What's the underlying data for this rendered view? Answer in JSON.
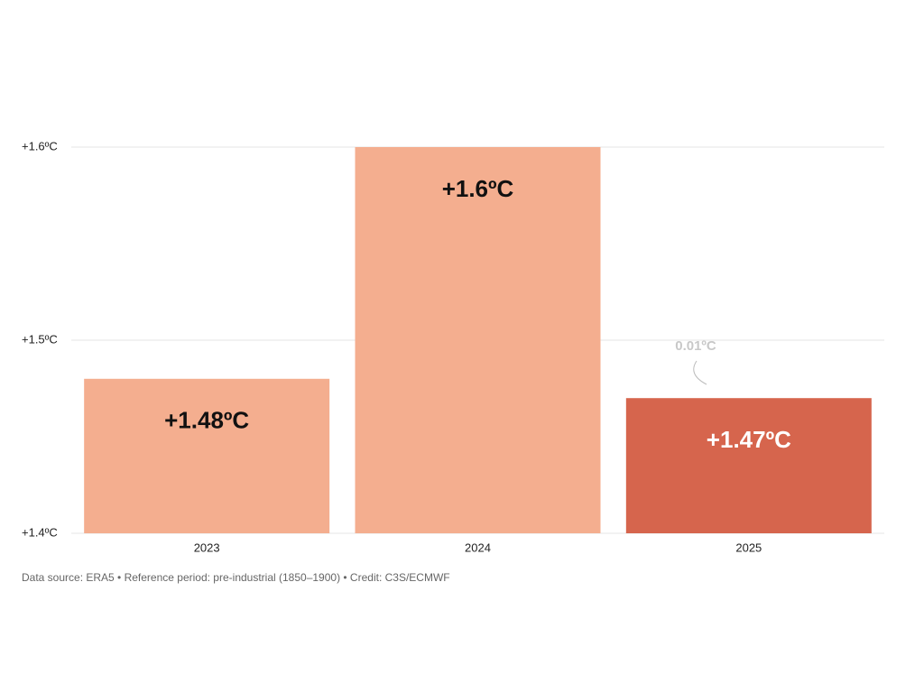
{
  "chart_data": {
    "type": "bar",
    "categories": [
      "2023",
      "2024",
      "2025"
    ],
    "values": [
      1.48,
      1.6,
      1.47
    ],
    "value_labels": [
      "+1.48ºC",
      "+1.6ºC",
      "+1.47ºC"
    ],
    "colors": [
      "#f4ae8f",
      "#f4ae8f",
      "#d6654d"
    ],
    "ylim": [
      1.4,
      1.6
    ],
    "yticks": [
      {
        "value": 1.4,
        "label": "+1.4ºC"
      },
      {
        "value": 1.5,
        "label": "+1.5ºC"
      },
      {
        "value": 1.6,
        "label": "+1.6ºC"
      }
    ],
    "grid": true,
    "annotation": "0.01ºC",
    "source": "Data source: ERA5 • Reference period: pre-industrial (1850–1900) • Credit: C3S/ECMWF"
  }
}
